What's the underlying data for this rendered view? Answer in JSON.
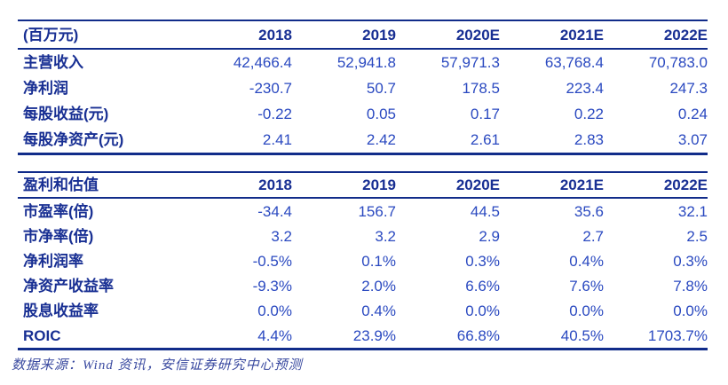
{
  "colors": {
    "rule": "#112c8a",
    "label_text": "#182f93",
    "value_text": "#2a49c0",
    "footer_text": "#3a4aa0",
    "background": "#ffffff"
  },
  "tables": [
    {
      "header": {
        "label": "(百万元)",
        "columns": [
          "2018",
          "2019",
          "2020E",
          "2021E",
          "2022E"
        ]
      },
      "rows": [
        {
          "label": "主营收入",
          "values": [
            "42,466.4",
            "52,941.8",
            "57,971.3",
            "63,768.4",
            "70,783.0"
          ]
        },
        {
          "label": "净利润",
          "values": [
            "-230.7",
            "50.7",
            "178.5",
            "223.4",
            "247.3"
          ]
        },
        {
          "label": "每股收益(元)",
          "values": [
            "-0.22",
            "0.05",
            "0.17",
            "0.22",
            "0.24"
          ]
        },
        {
          "label": "每股净资产(元)",
          "values": [
            "2.41",
            "2.42",
            "2.61",
            "2.83",
            "3.07"
          ]
        }
      ]
    },
    {
      "header": {
        "label": "盈利和估值",
        "columns": [
          "2018",
          "2019",
          "2020E",
          "2021E",
          "2022E"
        ]
      },
      "rows": [
        {
          "label": "市盈率(倍)",
          "values": [
            "-34.4",
            "156.7",
            "44.5",
            "35.6",
            "32.1"
          ]
        },
        {
          "label": "市净率(倍)",
          "values": [
            "3.2",
            "3.2",
            "2.9",
            "2.7",
            "2.5"
          ]
        },
        {
          "label": "净利润率",
          "values": [
            "-0.5%",
            "0.1%",
            "0.3%",
            "0.4%",
            "0.3%"
          ]
        },
        {
          "label": "净资产收益率",
          "values": [
            "-9.3%",
            "2.0%",
            "6.6%",
            "7.6%",
            "7.8%"
          ]
        },
        {
          "label": "股息收益率",
          "values": [
            "0.0%",
            "0.4%",
            "0.0%",
            "0.0%",
            "0.0%"
          ]
        },
        {
          "label": "ROIC",
          "values": [
            "4.4%",
            "23.9%",
            "66.8%",
            "40.5%",
            "1703.7%"
          ]
        }
      ]
    }
  ],
  "footer": {
    "source": "数据来源：Wind 资讯，安信证券研究中心预测"
  }
}
